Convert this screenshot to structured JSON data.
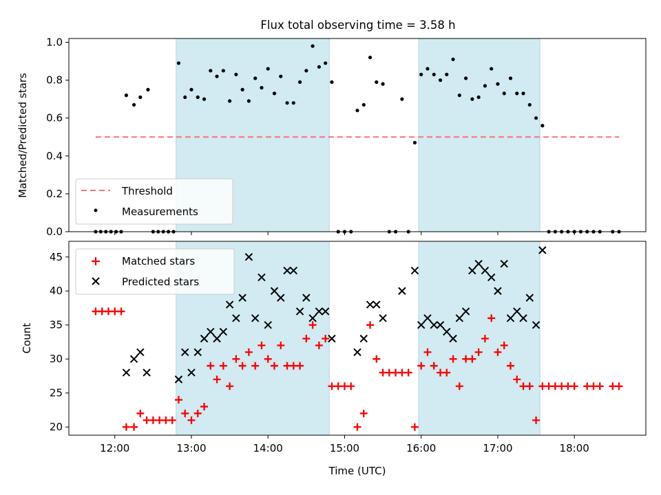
{
  "chart_data": {
    "type": "scatter",
    "title": "Flux total observing time = 3.58 h",
    "xlabel": "Time (UTC)",
    "x_ticks": [
      "12:00",
      "13:00",
      "14:00",
      "15:00",
      "16:00",
      "17:00",
      "18:00"
    ],
    "xlim": [
      "11:24",
      "18:56"
    ],
    "shaded_intervals": [
      [
        "12:48",
        "14:48"
      ],
      [
        "15:58",
        "17:33"
      ]
    ],
    "shade_color": "#add8e6",
    "top_panel": {
      "ylabel": "Matched/Predicted stars",
      "ylim": [
        0,
        1.02
      ],
      "y_ticks": [
        "0.0",
        "0.2",
        "0.4",
        "0.6",
        "0.8",
        "1.0"
      ],
      "legend_position": "lower-left",
      "threshold": {
        "name": "Threshold",
        "value": 0.5,
        "x_range": [
          "11:45",
          "18:35"
        ],
        "color": "#ff7070"
      },
      "measurements": {
        "name": "Measurements",
        "color": "#000000",
        "points": [
          [
            "11:45",
            0.0
          ],
          [
            "11:49",
            0.0
          ],
          [
            "11:53",
            0.0
          ],
          [
            "11:57",
            0.0
          ],
          [
            "12:01",
            0.0
          ],
          [
            "12:05",
            0.0
          ],
          [
            "12:09",
            0.72
          ],
          [
            "12:15",
            0.67
          ],
          [
            "12:20",
            0.71
          ],
          [
            "12:26",
            0.75
          ],
          [
            "12:30",
            0.0
          ],
          [
            "12:34",
            0.0
          ],
          [
            "12:38",
            0.0
          ],
          [
            "12:42",
            0.0
          ],
          [
            "12:46",
            0.0
          ],
          [
            "12:50",
            0.89
          ],
          [
            "12:55",
            0.71
          ],
          [
            "13:00",
            0.75
          ],
          [
            "13:05",
            0.71
          ],
          [
            "13:10",
            0.7
          ],
          [
            "13:15",
            0.85
          ],
          [
            "13:20",
            0.82
          ],
          [
            "13:25",
            0.85
          ],
          [
            "13:30",
            0.69
          ],
          [
            "13:35",
            0.83
          ],
          [
            "13:40",
            0.75
          ],
          [
            "13:45",
            0.69
          ],
          [
            "13:50",
            0.81
          ],
          [
            "13:55",
            0.76
          ],
          [
            "14:00",
            0.86
          ],
          [
            "14:05",
            0.73
          ],
          [
            "14:10",
            0.82
          ],
          [
            "14:15",
            0.68
          ],
          [
            "14:20",
            0.68
          ],
          [
            "14:25",
            0.79
          ],
          [
            "14:30",
            0.85
          ],
          [
            "14:35",
            0.98
          ],
          [
            "14:40",
            0.87
          ],
          [
            "14:45",
            0.89
          ],
          [
            "14:50",
            0.79
          ],
          [
            "14:55",
            0.0
          ],
          [
            "15:00",
            0.0
          ],
          [
            "15:05",
            0.0
          ],
          [
            "15:10",
            0.64
          ],
          [
            "15:15",
            0.67
          ],
          [
            "15:20",
            0.92
          ],
          [
            "15:25",
            0.79
          ],
          [
            "15:30",
            0.78
          ],
          [
            "15:35",
            0.0
          ],
          [
            "15:40",
            0.0
          ],
          [
            "15:45",
            0.7
          ],
          [
            "15:50",
            0.0
          ],
          [
            "15:55",
            0.47
          ],
          [
            "16:00",
            0.83
          ],
          [
            "16:05",
            0.86
          ],
          [
            "16:10",
            0.83
          ],
          [
            "16:15",
            0.8
          ],
          [
            "16:20",
            0.83
          ],
          [
            "16:25",
            0.91
          ],
          [
            "16:30",
            0.72
          ],
          [
            "16:35",
            0.81
          ],
          [
            "16:40",
            0.7
          ],
          [
            "16:45",
            0.71
          ],
          [
            "16:50",
            0.77
          ],
          [
            "16:55",
            0.86
          ],
          [
            "17:00",
            0.78
          ],
          [
            "17:05",
            0.73
          ],
          [
            "17:10",
            0.81
          ],
          [
            "17:15",
            0.73
          ],
          [
            "17:20",
            0.73
          ],
          [
            "17:25",
            0.67
          ],
          [
            "17:30",
            0.6
          ],
          [
            "17:35",
            0.56
          ],
          [
            "17:40",
            0.0
          ],
          [
            "17:45",
            0.0
          ],
          [
            "17:50",
            0.0
          ],
          [
            "17:55",
            0.0
          ],
          [
            "18:00",
            0.0
          ],
          [
            "18:05",
            0.0
          ],
          [
            "18:10",
            0.0
          ],
          [
            "18:15",
            0.0
          ],
          [
            "18:20",
            0.0
          ],
          [
            "18:30",
            0.0
          ],
          [
            "18:35",
            0.0
          ]
        ]
      }
    },
    "bottom_panel": {
      "ylabel": "Count",
      "ylim": [
        18.8,
        47.3
      ],
      "y_ticks": [
        "20",
        "25",
        "30",
        "35",
        "40",
        "45"
      ],
      "legend_position": "upper-left",
      "matched": {
        "name": "Matched stars",
        "color": "#ff0000",
        "points": [
          [
            "11:45",
            37
          ],
          [
            "11:50",
            37
          ],
          [
            "11:55",
            37
          ],
          [
            "12:00",
            37
          ],
          [
            "12:05",
            37
          ],
          [
            "12:09",
            20
          ],
          [
            "12:15",
            20
          ],
          [
            "12:20",
            22
          ],
          [
            "12:25",
            21
          ],
          [
            "12:30",
            21
          ],
          [
            "12:35",
            21
          ],
          [
            "12:40",
            21
          ],
          [
            "12:45",
            21
          ],
          [
            "12:50",
            24
          ],
          [
            "12:55",
            22
          ],
          [
            "13:00",
            21
          ],
          [
            "13:05",
            22
          ],
          [
            "13:10",
            23
          ],
          [
            "13:15",
            29
          ],
          [
            "13:20",
            27
          ],
          [
            "13:25",
            29
          ],
          [
            "13:30",
            26
          ],
          [
            "13:35",
            30
          ],
          [
            "13:40",
            29
          ],
          [
            "13:45",
            31
          ],
          [
            "13:50",
            29
          ],
          [
            "13:55",
            32
          ],
          [
            "14:00",
            30
          ],
          [
            "14:05",
            29
          ],
          [
            "14:10",
            32
          ],
          [
            "14:15",
            29
          ],
          [
            "14:20",
            29
          ],
          [
            "14:25",
            29
          ],
          [
            "14:30",
            33
          ],
          [
            "14:35",
            35
          ],
          [
            "14:40",
            32
          ],
          [
            "14:45",
            33
          ],
          [
            "14:50",
            26
          ],
          [
            "14:55",
            26
          ],
          [
            "15:00",
            26
          ],
          [
            "15:05",
            26
          ],
          [
            "15:10",
            20
          ],
          [
            "15:15",
            22
          ],
          [
            "15:20",
            35
          ],
          [
            "15:25",
            30
          ],
          [
            "15:30",
            28
          ],
          [
            "15:35",
            28
          ],
          [
            "15:40",
            28
          ],
          [
            "15:45",
            28
          ],
          [
            "15:50",
            28
          ],
          [
            "15:55",
            20
          ],
          [
            "16:00",
            29
          ],
          [
            "16:05",
            31
          ],
          [
            "16:10",
            29
          ],
          [
            "16:15",
            28
          ],
          [
            "16:20",
            28
          ],
          [
            "16:25",
            30
          ],
          [
            "16:30",
            26
          ],
          [
            "16:35",
            30
          ],
          [
            "16:40",
            30
          ],
          [
            "16:45",
            31
          ],
          [
            "16:50",
            33
          ],
          [
            "16:55",
            36
          ],
          [
            "17:00",
            31
          ],
          [
            "17:05",
            32
          ],
          [
            "17:10",
            29
          ],
          [
            "17:15",
            27
          ],
          [
            "17:20",
            26
          ],
          [
            "17:25",
            26
          ],
          [
            "17:30",
            21
          ],
          [
            "17:35",
            26
          ],
          [
            "17:40",
            26
          ],
          [
            "17:45",
            26
          ],
          [
            "17:50",
            26
          ],
          [
            "17:55",
            26
          ],
          [
            "18:00",
            26
          ],
          [
            "18:10",
            26
          ],
          [
            "18:15",
            26
          ],
          [
            "18:20",
            26
          ],
          [
            "18:30",
            26
          ],
          [
            "18:35",
            26
          ]
        ]
      },
      "predicted": {
        "name": "Predicted stars",
        "color": "#000000",
        "points": [
          [
            "12:09",
            28
          ],
          [
            "12:15",
            30
          ],
          [
            "12:20",
            31
          ],
          [
            "12:25",
            28
          ],
          [
            "12:50",
            27
          ],
          [
            "12:55",
            31
          ],
          [
            "13:00",
            28
          ],
          [
            "13:05",
            31
          ],
          [
            "13:10",
            33
          ],
          [
            "13:15",
            34
          ],
          [
            "13:20",
            33
          ],
          [
            "13:25",
            34
          ],
          [
            "13:30",
            38
          ],
          [
            "13:35",
            36
          ],
          [
            "13:40",
            39
          ],
          [
            "13:45",
            45
          ],
          [
            "13:50",
            36
          ],
          [
            "13:55",
            42
          ],
          [
            "14:00",
            35
          ],
          [
            "14:05",
            40
          ],
          [
            "14:10",
            39
          ],
          [
            "14:15",
            43
          ],
          [
            "14:20",
            43
          ],
          [
            "14:25",
            37
          ],
          [
            "14:30",
            39
          ],
          [
            "14:35",
            36
          ],
          [
            "14:40",
            37
          ],
          [
            "14:45",
            37
          ],
          [
            "14:50",
            33
          ],
          [
            "15:10",
            31
          ],
          [
            "15:15",
            33
          ],
          [
            "15:20",
            38
          ],
          [
            "15:25",
            38
          ],
          [
            "15:30",
            36
          ],
          [
            "15:45",
            40
          ],
          [
            "15:55",
            43
          ],
          [
            "16:00",
            35
          ],
          [
            "16:05",
            36
          ],
          [
            "16:10",
            35
          ],
          [
            "16:15",
            35
          ],
          [
            "16:20",
            34
          ],
          [
            "16:25",
            33
          ],
          [
            "16:30",
            36
          ],
          [
            "16:35",
            37
          ],
          [
            "16:40",
            43
          ],
          [
            "16:45",
            44
          ],
          [
            "16:50",
            43
          ],
          [
            "16:55",
            42
          ],
          [
            "17:00",
            40
          ],
          [
            "17:05",
            44
          ],
          [
            "17:10",
            36
          ],
          [
            "17:15",
            37
          ],
          [
            "17:20",
            36
          ],
          [
            "17:25",
            39
          ],
          [
            "17:30",
            35
          ],
          [
            "17:35",
            46
          ]
        ]
      }
    }
  }
}
